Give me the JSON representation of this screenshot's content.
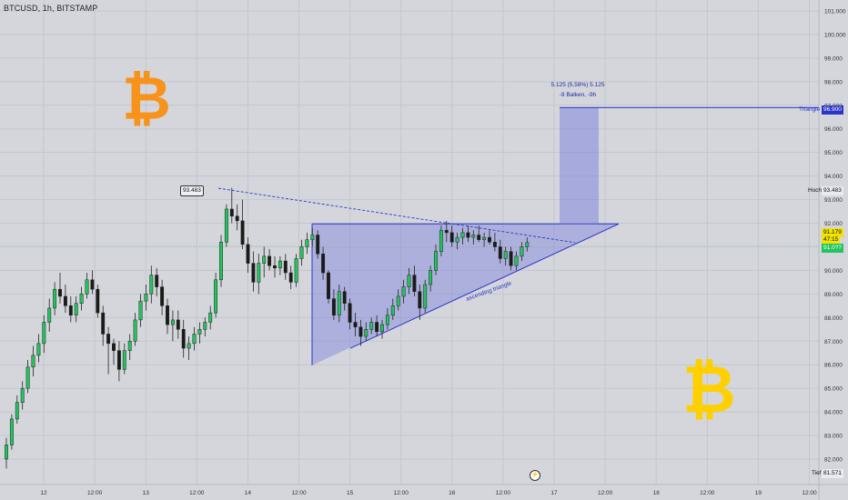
{
  "header": {
    "ticker": "BTCUSD, 1h, BITSTAMP"
  },
  "logos": {
    "btc_symbol": "₿"
  },
  "colors": {
    "background": "#d4d6dc",
    "grid": "#c3c6cd",
    "up": "#22c55e",
    "down": "#1a1a1a",
    "drawing": "#2b35c8",
    "triangle_fill": "rgba(120,125,220,0.42)",
    "target_fill": "rgba(120,125,220,0.50)",
    "bitcoin_orange": "#f7931a",
    "bitcoin_yellow": "#ffd000"
  },
  "annotations": {
    "measure_line1": "5.125 (5,58%) 5.125",
    "measure_line2": "-9 Balken, -9h",
    "triangle_label": "ascending triangle",
    "high_callout": "93.483"
  },
  "axis_tags": {
    "triangle_label": "Triangle",
    "triangle_value": "96.900",
    "high_label": "Hoch",
    "high_value": "93.483",
    "last_price": "91.179",
    "countdown": "47:15",
    "current_price": "91.0??",
    "low_label": "Tief",
    "low_value": "81.571"
  },
  "chart_data": {
    "type": "candlestick",
    "title": "BTCUSD, 1h, BITSTAMP",
    "ylim": [
      81.2,
      101.3
    ],
    "y_ticks": [
      "101.000",
      "100.000",
      "99.000",
      "98.000",
      "97.000",
      "96.000",
      "95.000",
      "94.000",
      "93.000",
      "92.000",
      "91.000",
      "90.000",
      "89.000",
      "88.000",
      "87.000",
      "86.000",
      "85.000",
      "84.000",
      "83.000",
      "82.000"
    ],
    "x_labels": [
      {
        "label": "12",
        "day": 0
      },
      {
        "label": "12:00",
        "day": 0.5
      },
      {
        "label": "13",
        "day": 1
      },
      {
        "label": "12:00",
        "day": 1.5
      },
      {
        "label": "14",
        "day": 2
      },
      {
        "label": "12:00",
        "day": 2.5
      },
      {
        "label": "15",
        "day": 3
      },
      {
        "label": "12:00",
        "day": 3.5
      },
      {
        "label": "16",
        "day": 4
      },
      {
        "label": "12:00",
        "day": 4.5
      },
      {
        "label": "17",
        "day": 5
      },
      {
        "label": "12:00",
        "day": 5.5
      },
      {
        "label": "18",
        "day": 6
      },
      {
        "label": "12:00",
        "day": 6.5
      },
      {
        "label": "19",
        "day": 7
      },
      {
        "label": "12:00",
        "day": 7.5
      }
    ],
    "ohlc": [
      [
        82.0,
        82.9,
        81.6,
        82.6
      ],
      [
        82.6,
        83.9,
        82.4,
        83.7
      ],
      [
        83.7,
        84.7,
        83.5,
        84.4
      ],
      [
        84.4,
        85.3,
        84.1,
        85.0
      ],
      [
        85.0,
        86.2,
        84.8,
        85.9
      ],
      [
        85.9,
        86.8,
        85.5,
        86.4
      ],
      [
        86.4,
        87.3,
        86.1,
        86.9
      ],
      [
        86.9,
        88.1,
        86.5,
        87.8
      ],
      [
        87.8,
        88.8,
        87.4,
        88.4
      ],
      [
        88.4,
        89.5,
        88.1,
        89.2
      ],
      [
        89.2,
        89.9,
        88.6,
        88.9
      ],
      [
        88.9,
        89.4,
        88.2,
        88.5
      ],
      [
        88.5,
        88.9,
        87.8,
        88.1
      ],
      [
        88.1,
        88.9,
        87.8,
        88.6
      ],
      [
        88.6,
        89.3,
        88.3,
        89.0
      ],
      [
        89.0,
        89.9,
        88.8,
        89.6
      ],
      [
        89.6,
        90.0,
        89.0,
        89.2
      ],
      [
        89.2,
        89.4,
        88.0,
        88.2
      ],
      [
        88.2,
        88.5,
        86.8,
        87.3
      ],
      [
        87.3,
        87.6,
        85.6,
        86.9
      ],
      [
        86.9,
        87.1,
        86.0,
        86.6
      ],
      [
        86.6,
        87.0,
        85.3,
        85.8
      ],
      [
        85.8,
        86.9,
        85.6,
        86.6
      ],
      [
        86.6,
        87.3,
        86.2,
        87.0
      ],
      [
        87.0,
        88.2,
        86.8,
        87.9
      ],
      [
        87.9,
        89.0,
        87.6,
        88.7
      ],
      [
        88.7,
        89.4,
        88.3,
        89.0
      ],
      [
        89.0,
        90.2,
        88.6,
        89.8
      ],
      [
        89.8,
        90.1,
        88.9,
        89.3
      ],
      [
        89.3,
        89.6,
        88.1,
        88.5
      ],
      [
        88.5,
        88.8,
        87.3,
        87.7
      ],
      [
        87.7,
        88.3,
        87.0,
        87.9
      ],
      [
        87.9,
        88.3,
        87.1,
        87.5
      ],
      [
        87.5,
        87.9,
        86.3,
        86.7
      ],
      [
        86.7,
        87.2,
        86.2,
        86.9
      ],
      [
        86.9,
        87.6,
        86.6,
        87.3
      ],
      [
        87.3,
        87.8,
        86.9,
        87.5
      ],
      [
        87.5,
        88.0,
        87.2,
        87.8
      ],
      [
        87.8,
        88.5,
        87.5,
        88.2
      ],
      [
        88.2,
        89.9,
        88.0,
        89.6
      ],
      [
        89.6,
        91.5,
        89.3,
        91.2
      ],
      [
        91.2,
        92.8,
        91.0,
        92.6
      ],
      [
        92.6,
        93.5,
        92.0,
        92.3
      ],
      [
        92.3,
        92.8,
        91.7,
        92.1
      ],
      [
        92.1,
        93.0,
        90.9,
        91.1
      ],
      [
        91.1,
        91.4,
        89.9,
        90.3
      ],
      [
        90.3,
        90.8,
        89.1,
        89.5
      ],
      [
        89.5,
        90.7,
        89.0,
        90.3
      ],
      [
        90.3,
        91.0,
        89.7,
        90.6
      ],
      [
        90.6,
        90.9,
        90.0,
        90.2
      ],
      [
        90.2,
        90.6,
        89.7,
        90.1
      ],
      [
        90.1,
        90.6,
        89.8,
        90.4
      ],
      [
        90.4,
        90.7,
        89.6,
        89.9
      ],
      [
        89.9,
        90.2,
        89.2,
        89.5
      ],
      [
        89.5,
        90.7,
        89.3,
        90.5
      ],
      [
        90.5,
        91.3,
        90.2,
        91.0
      ],
      [
        91.0,
        91.6,
        90.7,
        91.3
      ],
      [
        91.3,
        91.8,
        91.0,
        91.5
      ],
      [
        91.5,
        91.7,
        90.5,
        90.7
      ],
      [
        90.7,
        91.0,
        89.6,
        89.9
      ],
      [
        89.9,
        90.0,
        88.6,
        88.8
      ],
      [
        88.8,
        89.2,
        87.9,
        88.1
      ],
      [
        88.1,
        89.4,
        87.8,
        89.1
      ],
      [
        89.1,
        89.3,
        88.3,
        88.6
      ],
      [
        88.6,
        88.8,
        87.5,
        87.8
      ],
      [
        87.8,
        88.2,
        87.2,
        87.6
      ],
      [
        87.6,
        87.9,
        86.8,
        87.2
      ],
      [
        87.2,
        87.8,
        87.0,
        87.5
      ],
      [
        87.5,
        88.0,
        87.3,
        87.8
      ],
      [
        87.8,
        88.1,
        87.2,
        87.4
      ],
      [
        87.4,
        87.9,
        87.1,
        87.7
      ],
      [
        87.7,
        88.4,
        87.5,
        88.1
      ],
      [
        88.1,
        88.8,
        87.9,
        88.5
      ],
      [
        88.5,
        89.2,
        88.3,
        88.9
      ],
      [
        88.9,
        89.6,
        88.6,
        89.3
      ],
      [
        89.3,
        90.1,
        89.0,
        89.8
      ],
      [
        89.8,
        90.2,
        88.9,
        89.1
      ],
      [
        89.1,
        89.4,
        87.9,
        88.4
      ],
      [
        88.4,
        89.6,
        88.2,
        89.4
      ],
      [
        89.4,
        90.2,
        89.1,
        90.0
      ],
      [
        90.0,
        91.1,
        89.8,
        90.8
      ],
      [
        90.8,
        91.9,
        90.6,
        91.7
      ],
      [
        91.7,
        92.1,
        91.2,
        91.6
      ],
      [
        91.6,
        91.9,
        91.0,
        91.2
      ],
      [
        91.2,
        91.6,
        90.9,
        91.4
      ],
      [
        91.4,
        91.8,
        91.1,
        91.6
      ],
      [
        91.6,
        91.9,
        91.2,
        91.4
      ],
      [
        91.4,
        91.7,
        91.1,
        91.5
      ],
      [
        91.5,
        91.9,
        91.2,
        91.3
      ],
      [
        91.3,
        91.6,
        91.0,
        91.4
      ],
      [
        91.4,
        91.7,
        91.1,
        91.2
      ],
      [
        91.2,
        91.6,
        90.8,
        91.0
      ],
      [
        91.0,
        91.3,
        90.3,
        90.5
      ],
      [
        90.5,
        91.0,
        90.2,
        90.8
      ],
      [
        90.8,
        91.0,
        90.0,
        90.2
      ],
      [
        90.2,
        90.8,
        90.0,
        90.6
      ],
      [
        90.6,
        91.2,
        90.4,
        91.0
      ],
      [
        91.0,
        91.4,
        90.8,
        91.179
      ]
    ],
    "drawings": {
      "measure_target": 96.9,
      "high_price": 93.483,
      "triangle_top": 91.97,
      "triangle_base_low": 85.98
    }
  }
}
